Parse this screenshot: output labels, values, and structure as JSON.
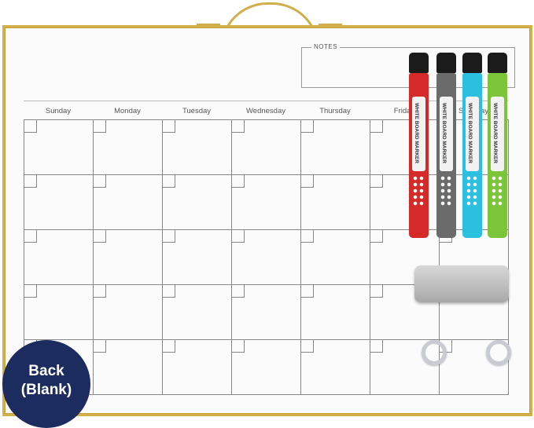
{
  "notes_label": "NOTES",
  "days": [
    "Sunday",
    "Monday",
    "Tuesday",
    "Wednesday",
    "Thursday",
    "Friday",
    "Saturday"
  ],
  "markers": [
    {
      "color": "#d42a2a",
      "text": "WHITE BOARD MARKER"
    },
    {
      "color": "#6b6b6b",
      "text": "WHITE BOARD MARKER"
    },
    {
      "color": "#2bbfe0",
      "text": "WHITE BOARD MARKER"
    },
    {
      "color": "#7cc43a",
      "text": "WHITE BOARD MARKER"
    }
  ],
  "badge": {
    "line1": "Back",
    "line2": "(Blank)",
    "color": "#1d2c5e"
  },
  "frame_color": "#d4b04a"
}
